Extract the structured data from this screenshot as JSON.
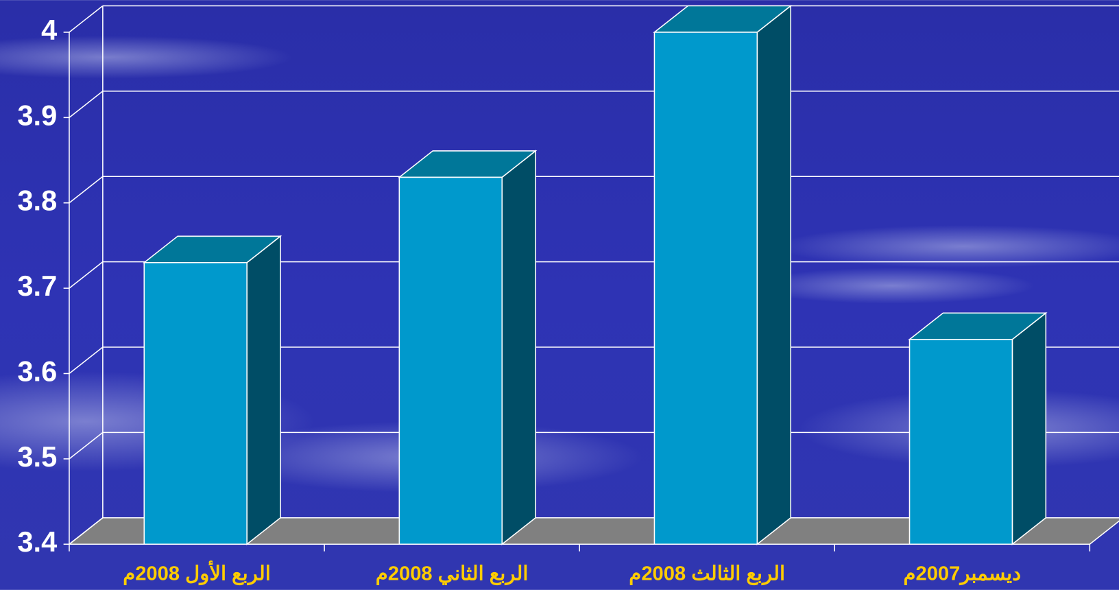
{
  "chart_data": {
    "type": "bar3d",
    "categories": [
      "الربع الأول 2008م",
      "الربع الثاني 2008م",
      "الربع الثالث 2008م",
      "ديسمبر2007م"
    ],
    "values": [
      3.73,
      3.83,
      4.0,
      3.64
    ],
    "color": "#0099cc",
    "ylim": [
      3.4,
      4
    ],
    "yticks": [
      3.4,
      3.5,
      3.6,
      3.7,
      3.8,
      3.9,
      4
    ],
    "grid": true
  }
}
